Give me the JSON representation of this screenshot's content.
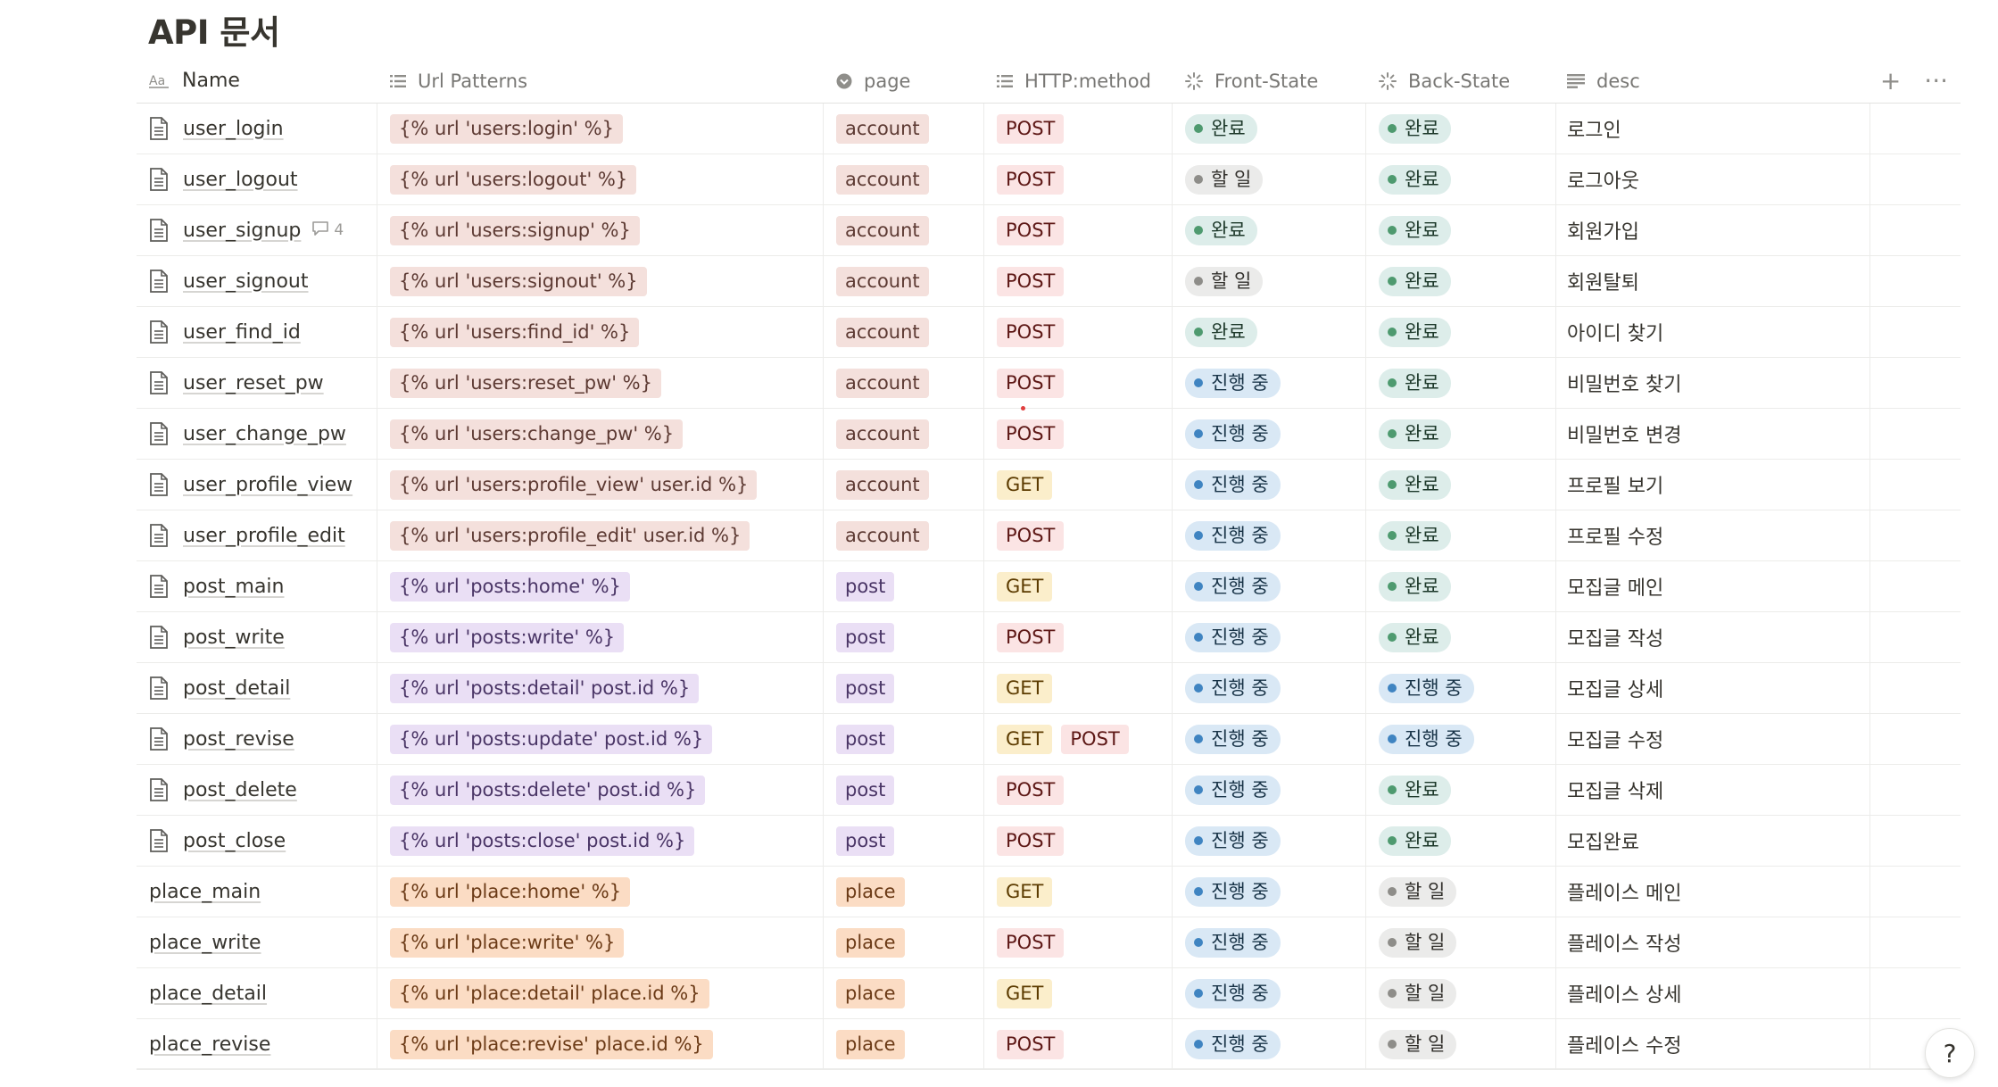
{
  "title": "API 문서",
  "columns": {
    "name": "Name",
    "url": "Url Patterns",
    "page": "page",
    "method": "HTTP:method",
    "front": "Front-State",
    "back": "Back-State",
    "desc": "desc",
    "add": "+",
    "more": "···"
  },
  "icons": {
    "name_col": "text-type-icon",
    "url_col": "multi-select-icon",
    "page_col": "select-icon",
    "method_col": "multi-select-icon",
    "status_col": "status-icon",
    "desc_col": "text-lines-icon",
    "row_page": "document-icon",
    "comment": "comment-icon"
  },
  "colors": {
    "done": "#ddedea",
    "todo": "#ebebea",
    "in_progress": "#d9e8f5",
    "post_method": "#fbe4e4",
    "get_method": "#fbeecb"
  },
  "rows": [
    {
      "name": "user_login",
      "url": "{% url 'users:login' %}",
      "page": "account",
      "methods": [
        "POST"
      ],
      "front": "완료",
      "back": "완료",
      "desc": "로그인",
      "doc": true
    },
    {
      "name": "user_logout",
      "url": "{% url 'users:logout' %}",
      "page": "account",
      "methods": [
        "POST"
      ],
      "front": "할 일",
      "back": "완료",
      "desc": "로그아웃",
      "doc": true
    },
    {
      "name": "user_signup",
      "url": "{% url 'users:signup' %}",
      "page": "account",
      "methods": [
        "POST"
      ],
      "front": "완료",
      "back": "완료",
      "desc": "회원가입",
      "doc": true,
      "comments": "4"
    },
    {
      "name": "user_signout",
      "url": "{% url 'users:signout' %}",
      "page": "account",
      "methods": [
        "POST"
      ],
      "front": "할 일",
      "back": "완료",
      "desc": "회원탈퇴",
      "doc": true
    },
    {
      "name": "user_find_id",
      "url": "{% url 'users:find_id' %}",
      "page": "account",
      "methods": [
        "POST"
      ],
      "front": "완료",
      "back": "완료",
      "desc": "아이디 찾기",
      "doc": true
    },
    {
      "name": "user_reset_pw",
      "url": "{% url 'users:reset_pw' %}",
      "page": "account",
      "methods": [
        "POST"
      ],
      "front": "진행 중",
      "back": "완료",
      "desc": "비밀번호 찾기",
      "doc": true
    },
    {
      "name": "user_change_pw",
      "url": "{% url 'users:change_pw' %}",
      "page": "account",
      "methods": [
        "POST"
      ],
      "front": "진행 중",
      "back": "완료",
      "desc": "비밀번호 변경",
      "doc": true
    },
    {
      "name": "user_profile_view",
      "url": "{% url 'users:profile_view' user.id %}",
      "page": "account",
      "methods": [
        "GET"
      ],
      "front": "진행 중",
      "back": "완료",
      "desc": "프로필 보기",
      "doc": true
    },
    {
      "name": "user_profile_edit",
      "url": "{% url 'users:profile_edit' user.id %}",
      "page": "account",
      "methods": [
        "POST"
      ],
      "front": "진행 중",
      "back": "완료",
      "desc": "프로필 수정",
      "doc": true
    },
    {
      "name": "post_main",
      "url": "{% url 'posts:home' %}",
      "page": "post",
      "methods": [
        "GET"
      ],
      "front": "진행 중",
      "back": "완료",
      "desc": "모집글 메인",
      "doc": true
    },
    {
      "name": "post_write",
      "url": "{% url 'posts:write' %}",
      "page": "post",
      "methods": [
        "POST"
      ],
      "front": "진행 중",
      "back": "완료",
      "desc": "모집글 작성",
      "doc": true
    },
    {
      "name": "post_detail",
      "url": "{% url 'posts:detail' post.id %}",
      "page": "post",
      "methods": [
        "GET"
      ],
      "front": "진행 중",
      "back": "진행 중",
      "desc": "모집글 상세",
      "doc": true
    },
    {
      "name": "post_revise",
      "url": "{% url 'posts:update' post.id %}",
      "page": "post",
      "methods": [
        "GET",
        "POST"
      ],
      "front": "진행 중",
      "back": "진행 중",
      "desc": "모집글 수정",
      "doc": true
    },
    {
      "name": "post_delete",
      "url": "{% url 'posts:delete' post.id %}",
      "page": "post",
      "methods": [
        "POST"
      ],
      "front": "진행 중",
      "back": "완료",
      "desc": "모집글 삭제",
      "doc": true
    },
    {
      "name": "post_close",
      "url": "{% url 'posts:close' post.id %}",
      "page": "post",
      "methods": [
        "POST"
      ],
      "front": "진행 중",
      "back": "완료",
      "desc": "모집완료",
      "doc": true
    },
    {
      "name": "place_main",
      "url": "{% url 'place:home' %}",
      "page": "place",
      "methods": [
        "GET"
      ],
      "front": "진행 중",
      "back": "할 일",
      "desc": "플레이스 메인",
      "doc": false
    },
    {
      "name": "place_write",
      "url": "{% url 'place:write' %}",
      "page": "place",
      "methods": [
        "POST"
      ],
      "front": "진행 중",
      "back": "할 일",
      "desc": "플레이스 작성",
      "doc": false
    },
    {
      "name": "place_detail",
      "url": "{% url 'place:detail' place.id %}",
      "page": "place",
      "methods": [
        "GET"
      ],
      "front": "진행 중",
      "back": "할 일",
      "desc": "플레이스 상세",
      "doc": false
    },
    {
      "name": "place_revise",
      "url": "{% url 'place:revise' place.id %}",
      "page": "place",
      "methods": [
        "POST"
      ],
      "front": "진행 중",
      "back": "할 일",
      "desc": "플레이스 수정",
      "doc": false
    }
  ],
  "help_label": "?"
}
